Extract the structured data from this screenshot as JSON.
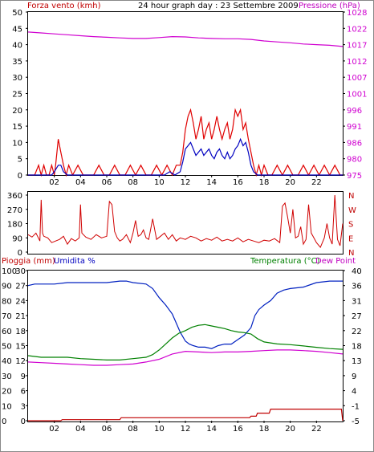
{
  "colors": {
    "wind": "#e00000",
    "pressure": "#d000d0",
    "gust_avg": "#0000c0",
    "dir": "#d00000",
    "humidity": "#0020c0",
    "temp": "#008000",
    "dewpoint": "#d000d0",
    "rain": "#c00000",
    "grid": "#000000",
    "blue_label": "#0000c0",
    "green_label": "#008000"
  },
  "chart_data": [
    {
      "type": "line",
      "title": "24 hour graph day : 23 Settembre 2009",
      "left_label": "Forza vento (kmh)",
      "right_label": "Pressione (hPa)",
      "y_left_ticks": [
        "0",
        "5",
        "10",
        "15",
        "20",
        "25",
        "30",
        "35",
        "40",
        "45",
        "50"
      ],
      "y_left_lim": [
        0,
        50
      ],
      "y_right_ticks": [
        "975",
        "980",
        "986",
        "991",
        "996",
        "1001",
        "1007",
        "1012",
        "1017",
        "1022",
        "1028"
      ],
      "x_ticks": [
        "02",
        "04",
        "06",
        "08",
        "10",
        "12",
        "14",
        "16",
        "18",
        "20",
        "22"
      ],
      "x_hours": [
        2,
        4,
        6,
        8,
        10,
        12,
        14,
        16,
        18,
        20,
        22
      ],
      "x_lim": [
        0,
        24
      ],
      "grid": false,
      "series": [
        {
          "key": "pressure",
          "axis": "right",
          "x": [
            0,
            1,
            2,
            3,
            4,
            5,
            6,
            7,
            8,
            9,
            10,
            11,
            12,
            13,
            14,
            15,
            16,
            17,
            18,
            19,
            20,
            21,
            22,
            23,
            24
          ],
          "y": [
            1021.5,
            1021.2,
            1020.9,
            1020.6,
            1020.3,
            1020.0,
            1019.8,
            1019.6,
            1019.4,
            1019.4,
            1019.7,
            1020.0,
            1019.9,
            1019.6,
            1019.4,
            1019.3,
            1019.3,
            1019.1,
            1018.6,
            1018.3,
            1018.0,
            1017.6,
            1017.4,
            1017.2,
            1016.8
          ]
        },
        {
          "key": "wind_gust",
          "axis": "left",
          "x": [
            0,
            0.5,
            0.8,
            1.0,
            1.2,
            1.4,
            1.6,
            1.8,
            2.0,
            2.1,
            2.3,
            2.5,
            2.7,
            2.9,
            3.1,
            3.4,
            3.8,
            4.2,
            4.6,
            5.0,
            5.4,
            5.8,
            6.2,
            6.6,
            7.0,
            7.4,
            7.8,
            8.2,
            8.6,
            9.0,
            9.4,
            9.8,
            10.2,
            10.6,
            11.0,
            11.3,
            11.6,
            11.8,
            12.0,
            12.2,
            12.4,
            12.6,
            12.8,
            13.0,
            13.2,
            13.4,
            13.6,
            13.8,
            14.0,
            14.2,
            14.4,
            14.6,
            14.8,
            15.0,
            15.2,
            15.4,
            15.6,
            15.8,
            16.0,
            16.2,
            16.4,
            16.6,
            16.8,
            17.0,
            17.2,
            17.4,
            17.6,
            17.8,
            18.0,
            18.3,
            18.6,
            19.0,
            19.4,
            19.8,
            20.2,
            20.6,
            21.0,
            21.4,
            21.8,
            22.2,
            22.6,
            23.0,
            23.4,
            23.8,
            24.0
          ],
          "y": [
            0,
            0,
            3,
            0,
            3,
            0,
            0,
            3,
            0,
            3,
            11,
            7,
            3,
            0,
            3,
            0,
            3,
            0,
            0,
            0,
            3,
            0,
            0,
            3,
            0,
            0,
            3,
            0,
            3,
            0,
            0,
            3,
            0,
            3,
            0,
            3,
            3,
            7,
            14,
            18,
            20,
            16,
            11,
            14,
            18,
            11,
            14,
            16,
            11,
            14,
            18,
            14,
            11,
            14,
            16,
            11,
            14,
            20,
            18,
            20,
            14,
            16,
            11,
            7,
            3,
            0,
            3,
            0,
            3,
            0,
            0,
            3,
            0,
            3,
            0,
            0,
            3,
            0,
            3,
            0,
            3,
            0,
            3,
            0,
            0
          ]
        },
        {
          "key": "wind_avg",
          "axis": "left",
          "x": [
            0,
            1.8,
            2.0,
            2.3,
            2.5,
            2.7,
            3.0,
            10.4,
            10.8,
            11.2,
            11.6,
            11.8,
            12.0,
            12.2,
            12.4,
            12.6,
            12.8,
            13.0,
            13.2,
            13.4,
            13.6,
            13.8,
            14.0,
            14.2,
            14.4,
            14.6,
            14.8,
            15.0,
            15.2,
            15.4,
            15.6,
            15.8,
            16.0,
            16.2,
            16.4,
            16.6,
            16.8,
            17.0,
            17.2,
            17.5,
            24.0
          ],
          "y": [
            0,
            0,
            1,
            3,
            3,
            1,
            0,
            0,
            1,
            0,
            1,
            4,
            8,
            9,
            10,
            8,
            6,
            7,
            8,
            6,
            7,
            8,
            6,
            5,
            7,
            8,
            6,
            5,
            7,
            5,
            6,
            8,
            9,
            11,
            9,
            10,
            7,
            3,
            1,
            0,
            0
          ]
        }
      ]
    },
    {
      "type": "line",
      "title": "",
      "y_left_ticks": [
        "0",
        "90",
        "180",
        "270",
        "360"
      ],
      "y_left_lim": [
        0,
        360
      ],
      "y_right_ticks": [
        "N",
        "E",
        "S",
        "W",
        "N"
      ],
      "x_lim": [
        0,
        24
      ],
      "grid": false,
      "series": [
        {
          "key": "direction",
          "axis": "left",
          "x": [
            0,
            0.3,
            0.6,
            0.9,
            1.0,
            1.1,
            1.2,
            1.5,
            1.8,
            2.1,
            2.4,
            2.7,
            3.0,
            3.3,
            3.6,
            3.9,
            4.0,
            4.1,
            4.4,
            4.8,
            5.2,
            5.6,
            6.0,
            6.2,
            6.4,
            6.6,
            6.8,
            7.0,
            7.2,
            7.5,
            7.8,
            8.0,
            8.2,
            8.4,
            8.6,
            8.8,
            9.0,
            9.2,
            9.5,
            9.8,
            10.1,
            10.4,
            10.7,
            11.0,
            11.3,
            11.6,
            12.0,
            12.4,
            12.8,
            13.2,
            13.6,
            14.0,
            14.4,
            14.8,
            15.2,
            15.6,
            16.0,
            16.4,
            16.8,
            17.2,
            17.6,
            18.0,
            18.4,
            18.8,
            19.2,
            19.4,
            19.6,
            19.8,
            20.0,
            20.2,
            20.4,
            20.6,
            20.8,
            21.0,
            21.2,
            21.4,
            21.6,
            21.8,
            22.0,
            22.3,
            22.6,
            22.8,
            23.0,
            23.2,
            23.4,
            23.6,
            23.8,
            24.0
          ],
          "y": [
            110,
            95,
            120,
            70,
            330,
            120,
            100,
            90,
            60,
            70,
            80,
            100,
            50,
            85,
            70,
            90,
            300,
            120,
            95,
            80,
            110,
            90,
            100,
            320,
            300,
            130,
            90,
            70,
            80,
            110,
            60,
            120,
            200,
            100,
            110,
            140,
            90,
            80,
            210,
            80,
            100,
            120,
            80,
            110,
            70,
            90,
            80,
            100,
            90,
            70,
            85,
            75,
            95,
            70,
            80,
            70,
            90,
            65,
            80,
            70,
            60,
            75,
            70,
            85,
            60,
            290,
            310,
            220,
            120,
            270,
            90,
            100,
            160,
            50,
            80,
            300,
            120,
            90,
            60,
            30,
            90,
            180,
            90,
            50,
            360,
            80,
            40,
            180
          ]
        }
      ]
    },
    {
      "type": "line",
      "title": "",
      "left_label_1": "Pioggia (mm)",
      "left_label_2": "Umidita %",
      "right_label_1": "Temperatura (°C)",
      "right_label_2": "Dew Point",
      "y_left_ticks_outer": [
        "0",
        "3",
        "6",
        "9",
        "12",
        "15",
        "18",
        "21",
        "24",
        "27",
        "30"
      ],
      "y_left_ticks_inner": [
        "0",
        "10",
        "20",
        "30",
        "40",
        "50",
        "60",
        "70",
        "80",
        "90",
        "100"
      ],
      "y_right_ticks": [
        "-5",
        "-1",
        "4",
        "9",
        "13",
        "18",
        "22",
        "27",
        "31",
        "36",
        "40"
      ],
      "y_left_lim": [
        0,
        100
      ],
      "y_right_lim": [
        -5,
        40
      ],
      "x_ticks": [
        "02",
        "04",
        "06",
        "08",
        "10",
        "12",
        "14",
        "16",
        "18",
        "20",
        "22"
      ],
      "x_hours": [
        2,
        4,
        6,
        8,
        10,
        12,
        14,
        16,
        18,
        20,
        22
      ],
      "x_lim": [
        0,
        24
      ],
      "grid": false,
      "series": [
        {
          "key": "humidity",
          "axis": "left",
          "x": [
            0,
            0.5,
            1.0,
            2.0,
            3.0,
            4.0,
            5.0,
            6.0,
            7.0,
            7.5,
            8.0,
            9.0,
            9.5,
            10.0,
            10.5,
            11.0,
            11.3,
            11.6,
            12.0,
            12.3,
            12.6,
            13.0,
            13.5,
            14.0,
            14.5,
            15.0,
            15.5,
            16.0,
            16.5,
            17.0,
            17.3,
            17.6,
            18.0,
            18.5,
            19.0,
            19.5,
            20.0,
            21.0,
            22.0,
            23.0,
            24.0
          ],
          "y": [
            90,
            91,
            91,
            91,
            92,
            92,
            92,
            92,
            93,
            93,
            92,
            91,
            88,
            82,
            77,
            71,
            65,
            59,
            53,
            51,
            50,
            49,
            49,
            48,
            50,
            51,
            51,
            54,
            57,
            62,
            70,
            74,
            77,
            80,
            85,
            87,
            88,
            89,
            92,
            93,
            93
          ]
        },
        {
          "key": "temperature",
          "axis": "right",
          "x": [
            0,
            1,
            2,
            3,
            4,
            5,
            6,
            7,
            8,
            9,
            9.5,
            10,
            10.5,
            11,
            11.5,
            12,
            12.5,
            13,
            13.5,
            14,
            14.5,
            15,
            15.5,
            16,
            16.5,
            17,
            17.5,
            18,
            19,
            20,
            21,
            22,
            23,
            24
          ],
          "y": [
            14.5,
            14.0,
            14.0,
            14.0,
            13.6,
            13.4,
            13.2,
            13.2,
            13.6,
            14.0,
            14.8,
            16.2,
            18.0,
            19.8,
            21.2,
            22.0,
            23.0,
            23.6,
            23.8,
            23.4,
            23.0,
            22.6,
            22.0,
            21.6,
            21.4,
            21.0,
            19.6,
            18.6,
            18.0,
            17.8,
            17.4,
            17.0,
            16.6,
            16.4
          ]
        },
        {
          "key": "dewpoint",
          "axis": "right",
          "x": [
            0,
            1,
            2,
            3,
            4,
            5,
            6,
            7,
            8,
            9,
            10,
            11,
            12,
            13,
            14,
            15,
            16,
            17,
            18,
            19,
            20,
            21,
            22,
            23,
            24
          ],
          "y": [
            12.6,
            12.4,
            12.2,
            12.0,
            11.8,
            11.6,
            11.6,
            11.8,
            12.0,
            12.6,
            13.4,
            15.0,
            15.8,
            15.6,
            15.4,
            15.6,
            15.6,
            15.8,
            16.0,
            16.2,
            16.2,
            16.0,
            15.8,
            15.4,
            15.0
          ]
        },
        {
          "key": "rain",
          "axis": "left",
          "x": [
            0,
            2.5,
            2.6,
            7.0,
            7.1,
            16.9,
            17.0,
            17.4,
            17.5,
            18.4,
            18.5,
            23.9,
            24.0
          ],
          "y": [
            0,
            0,
            0.7,
            0.7,
            2.0,
            2.0,
            3.0,
            3.0,
            5.0,
            5.0,
            7.7,
            7.7,
            0
          ]
        }
      ]
    }
  ]
}
